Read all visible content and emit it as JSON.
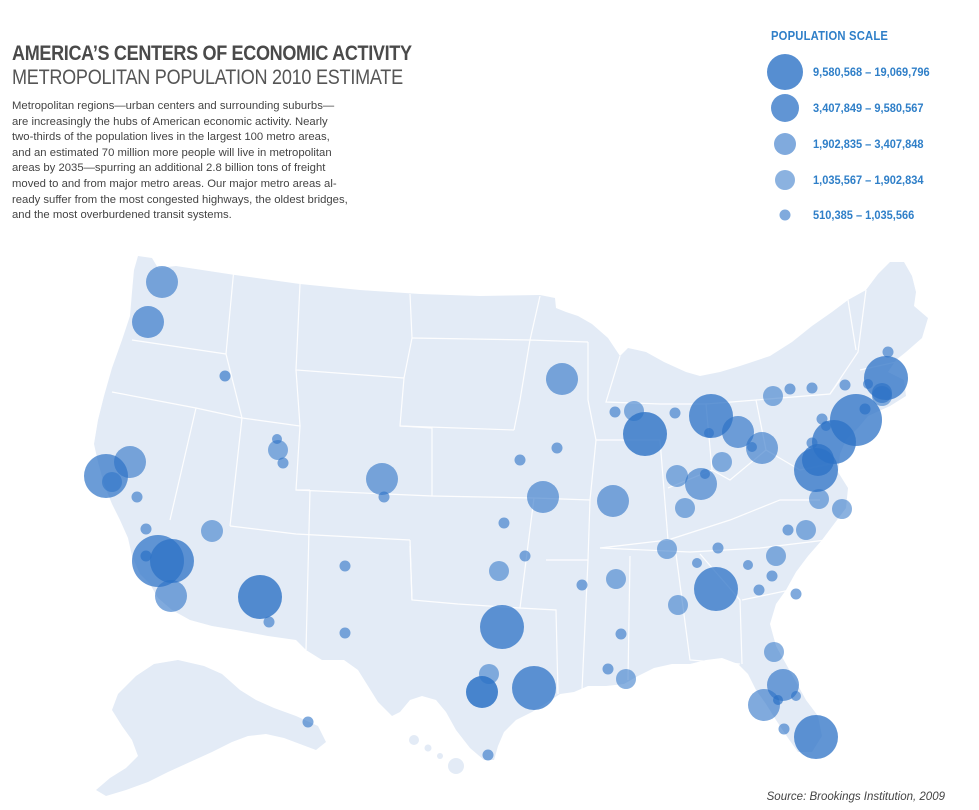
{
  "title": "AMERICA’S CENTERS OF ECONOMIC ACTIVITY",
  "subtitle": "METROPOLITAN POPULATION 2010 ESTIMATE",
  "description_lines": [
    "Metropolitan regions—urban centers and surrounding suburbs—",
    "are increasingly the hubs of American economic activity. Nearly",
    "two-thirds of the population lives in the largest 100 metro areas,",
    "and an estimated 70 million more people will live in metropolitan",
    "areas by 2035—spurring an additional 2.8 billion tons of freight",
    "moved to and from major metro areas. Our major metro areas al-",
    "ready suffer from the most congested highways, the oldest bridges,",
    "and the most overburdened transit systems."
  ],
  "legend": {
    "title": "POPULATION SCALE",
    "items": [
      {
        "label": "9,580,568 – 19,069,796",
        "tier": 5
      },
      {
        "label": "3,407,849 – 9,580,567",
        "tier": 4
      },
      {
        "label": "1,902,835 – 3,407,848",
        "tier": 3
      },
      {
        "label": "1,035,567 – 1,902,834",
        "tier": 2
      },
      {
        "label": "510,385 – 1,035,566",
        "tier": 1
      }
    ]
  },
  "source": "Source: Brookings Institution, 2009",
  "colors": {
    "land": "#e3ebf6",
    "state_border": "#ffffff",
    "bubble": "#2c72c6",
    "legend_text": "#2f7fc8"
  }
}
